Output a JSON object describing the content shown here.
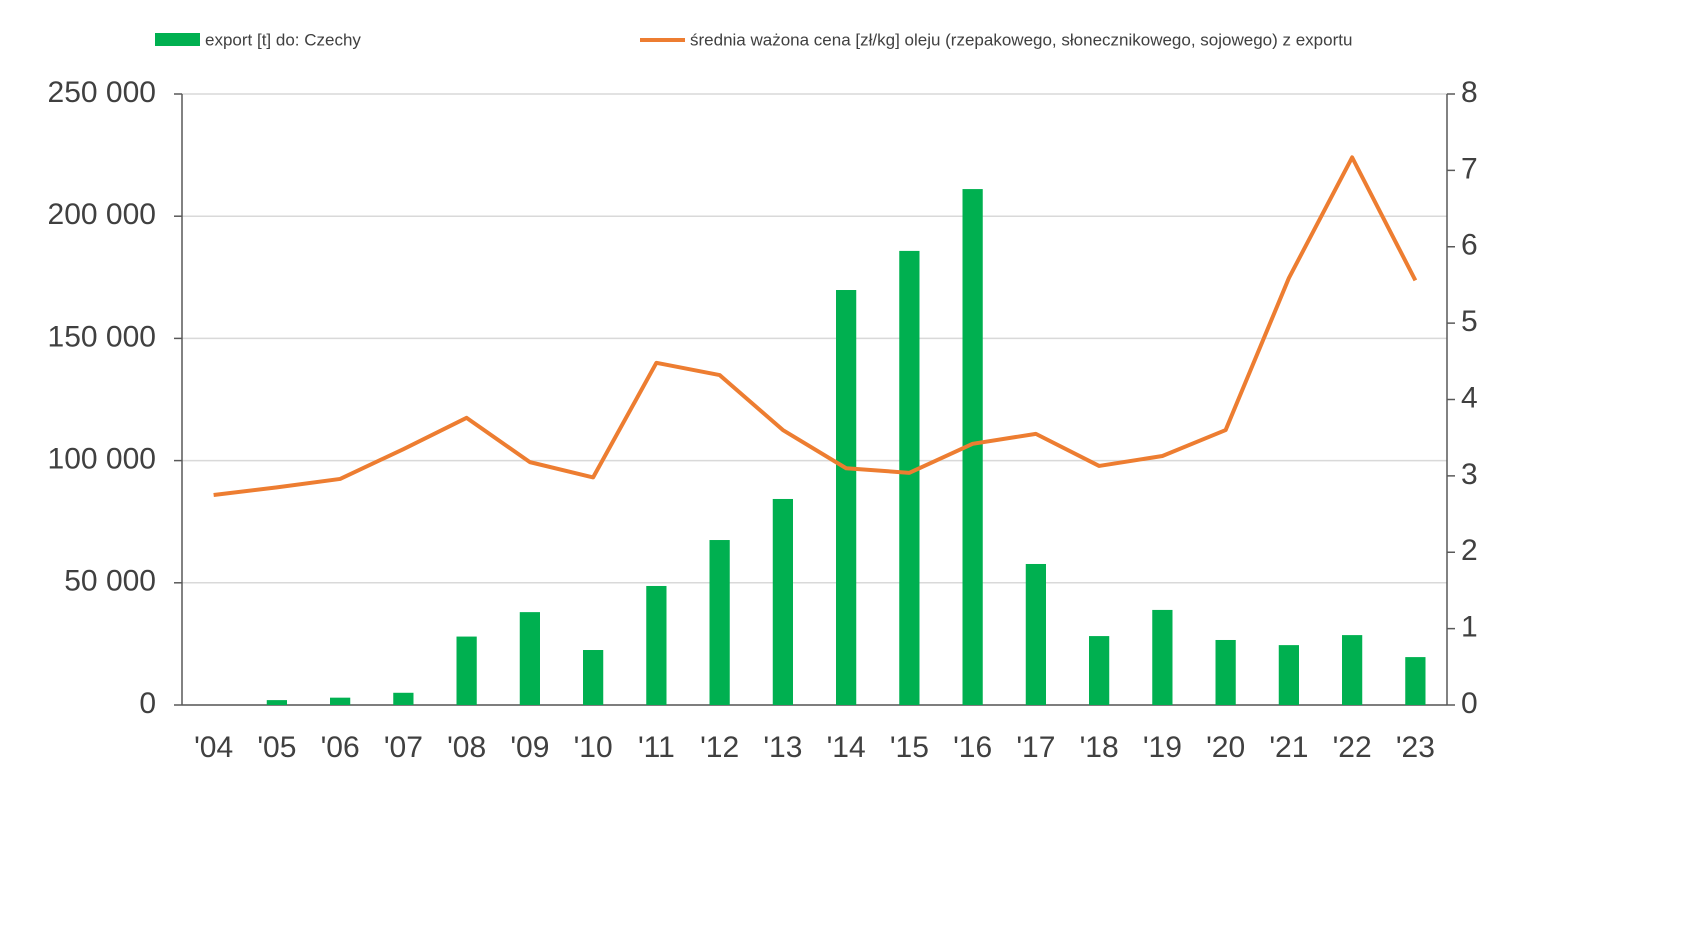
{
  "chart_data": {
    "type": "bar_line",
    "categories": [
      "'04",
      "'05",
      "'06",
      "'07",
      "'08",
      "'09",
      "'10",
      "'11",
      "'12",
      "'13",
      "'14",
      "'15",
      "'16",
      "'17",
      "'18",
      "'19",
      "'20",
      "'21",
      "'22",
      "'23"
    ],
    "series": [
      {
        "name": "export [t] do: Czechy",
        "type": "bar",
        "color": "#00b050",
        "values": [
          0,
          2000,
          3000,
          5000,
          28000,
          38000,
          22500,
          48700,
          67500,
          84300,
          169800,
          185800,
          211100,
          57700,
          28200,
          38900,
          26600,
          24500,
          28600,
          19600
        ]
      },
      {
        "name": "średnia ważona cena [zł/kg] oleju (rzepakowego, słonecznikowego, sojowego) z exportu",
        "type": "line",
        "axis": "y2",
        "color": "#ed7d31",
        "values": [
          2.75,
          2.85,
          2.96,
          3.35,
          3.76,
          3.18,
          2.98,
          4.48,
          4.32,
          3.6,
          3.1,
          3.04,
          3.42,
          3.55,
          3.13,
          3.26,
          3.6,
          5.59,
          7.17,
          5.56
        ]
      }
    ],
    "ylim": [
      0,
      250000
    ],
    "yticks": [
      0,
      {
        "value": 50000,
        "label": "50 000"
      },
      {
        "value": 100000,
        "label": "100 000"
      },
      {
        "value": 150000,
        "label": "150 000"
      },
      {
        "value": 200000,
        "label": "200 000"
      },
      {
        "value": 250000,
        "label": "250 000"
      }
    ],
    "y2lim": [
      0,
      8
    ],
    "y2ticks": [
      0,
      1,
      2,
      3,
      4,
      5,
      6,
      7,
      8
    ],
    "grid": true,
    "legend": "top"
  }
}
